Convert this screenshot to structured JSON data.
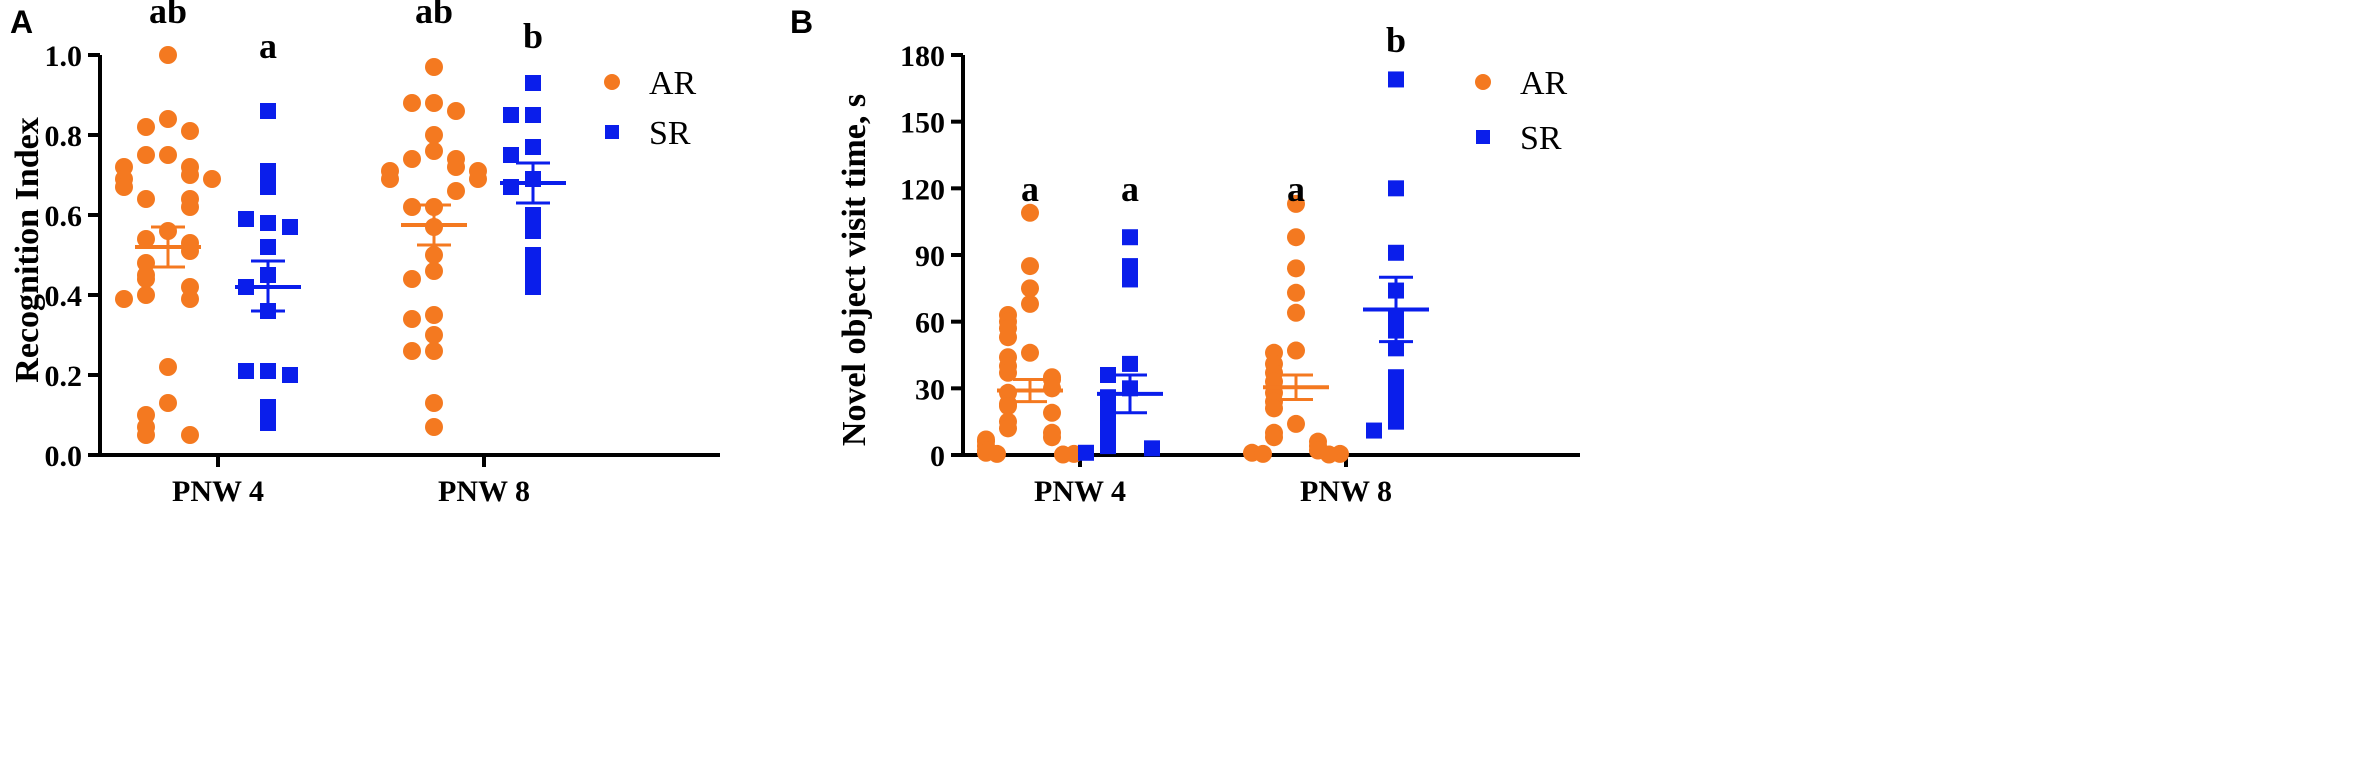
{
  "chart_data": [
    {
      "type": "scatter",
      "panel_label": "A",
      "title": "",
      "xlabel": "",
      "ylabel": "Recognition Index",
      "ylim": [
        0,
        1.0
      ],
      "yticks": [
        "0.0",
        "0.2",
        "0.4",
        "0.6",
        "0.8",
        "1.0"
      ],
      "yticks_values": [
        0,
        0.2,
        0.4,
        0.6,
        0.8,
        1.0
      ],
      "categories": [
        "PNW 4",
        "PNW 8"
      ],
      "legend": [
        {
          "name": "AR",
          "color": "#F47920",
          "marker": "circle"
        },
        {
          "name": "SR",
          "color": "#0A1EEB",
          "marker": "square"
        }
      ],
      "significance": [
        {
          "category": "PNW 4",
          "series": "AR",
          "label": "ab"
        },
        {
          "category": "PNW 4",
          "series": "SR",
          "label": "a"
        },
        {
          "category": "PNW 8",
          "series": "AR",
          "label": "ab"
        },
        {
          "category": "PNW 8",
          "series": "SR",
          "label": "b"
        }
      ],
      "series": [
        {
          "name": "AR",
          "color": "#F47920",
          "groups": [
            {
              "category": "PNW 4",
              "mean": 0.52,
              "sem_low": 0.47,
              "sem_high": 0.57,
              "values": [
                1.0,
                0.84,
                0.82,
                0.81,
                0.75,
                0.75,
                0.72,
                0.72,
                0.7,
                0.69,
                0.69,
                0.67,
                0.64,
                0.64,
                0.62,
                0.56,
                0.54,
                0.53,
                0.51,
                0.48,
                0.45,
                0.44,
                0.42,
                0.4,
                0.39,
                0.39,
                0.22,
                0.13,
                0.1,
                0.07,
                0.05,
                0.05
              ]
            },
            {
              "category": "PNW 8",
              "mean": 0.575,
              "sem_low": 0.525,
              "sem_high": 0.625,
              "values": [
                0.97,
                0.88,
                0.88,
                0.86,
                0.8,
                0.76,
                0.74,
                0.74,
                0.72,
                0.71,
                0.71,
                0.69,
                0.69,
                0.66,
                0.62,
                0.62,
                0.57,
                0.5,
                0.46,
                0.44,
                0.35,
                0.34,
                0.3,
                0.26,
                0.26,
                0.13,
                0.07
              ]
            }
          ]
        },
        {
          "name": "SR",
          "color": "#0A1EEB",
          "groups": [
            {
              "category": "PNW 4",
              "mean": 0.42,
              "sem_low": 0.36,
              "sem_high": 0.485,
              "values": [
                0.86,
                0.71,
                0.67,
                0.58,
                0.59,
                0.57,
                0.52,
                0.45,
                0.42,
                0.36,
                0.21,
                0.21,
                0.2,
                0.12,
                0.08
              ]
            },
            {
              "category": "PNW 8",
              "mean": 0.68,
              "sem_low": 0.63,
              "sem_high": 0.73,
              "values": [
                0.93,
                0.85,
                0.85,
                0.77,
                0.75,
                0.69,
                0.67,
                0.6,
                0.56,
                0.5,
                0.46,
                0.42
              ]
            }
          ]
        }
      ]
    },
    {
      "type": "scatter",
      "panel_label": "B",
      "title": "",
      "xlabel": "",
      "ylabel": "Novel object visit time, s",
      "ylim": [
        0,
        180
      ],
      "yticks": [
        "0",
        "30",
        "60",
        "90",
        "120",
        "150",
        "180"
      ],
      "yticks_values": [
        0,
        30,
        60,
        90,
        120,
        150,
        180
      ],
      "categories": [
        "PNW 4",
        "PNW 8"
      ],
      "legend": [
        {
          "name": "AR",
          "color": "#F47920",
          "marker": "circle"
        },
        {
          "name": "SR",
          "color": "#0A1EEB",
          "marker": "square"
        }
      ],
      "significance": [
        {
          "category": "PNW 4",
          "series": "AR",
          "label": "a"
        },
        {
          "category": "PNW 4",
          "series": "SR",
          "label": "a"
        },
        {
          "category": "PNW 8",
          "series": "AR",
          "label": "a"
        },
        {
          "category": "PNW 8",
          "series": "SR",
          "label": "b"
        }
      ],
      "series": [
        {
          "name": "AR",
          "color": "#F47920",
          "groups": [
            {
              "category": "PNW 4",
              "mean": 29,
              "sem_low": 24,
              "sem_high": 34,
              "values": [
                109,
                85,
                75,
                68,
                63,
                60,
                57,
                53,
                46,
                44,
                40,
                37,
                35,
                34,
                30,
                28,
                23,
                22,
                19,
                15,
                12,
                10,
                8,
                7,
                6,
                4,
                2,
                1,
                0.5,
                0.5,
                0.2
              ]
            },
            {
              "category": "PNW 8",
              "mean": 30.5,
              "sem_low": 25,
              "sem_high": 36,
              "values": [
                113,
                98,
                84,
                73,
                64,
                47,
                46,
                41,
                37,
                33,
                28,
                24,
                21,
                14,
                10,
                8,
                6,
                4,
                2,
                1,
                0.5,
                0.5,
                0.2
              ]
            }
          ]
        },
        {
          "name": "SR",
          "color": "#0A1EEB",
          "groups": [
            {
              "category": "PNW 4",
              "mean": 27.5,
              "sem_low": 19,
              "sem_high": 36,
              "values": [
                98,
                85,
                79,
                41,
                36,
                30,
                26,
                21,
                17,
                12,
                10,
                5,
                4,
                3,
                1
              ]
            },
            {
              "category": "PNW 8",
              "mean": 65.5,
              "sem_low": 51,
              "sem_high": 80,
              "values": [
                169,
                120,
                91,
                74,
                62,
                56,
                48,
                35,
                29,
                22,
                15,
                11
              ]
            }
          ]
        }
      ]
    }
  ]
}
